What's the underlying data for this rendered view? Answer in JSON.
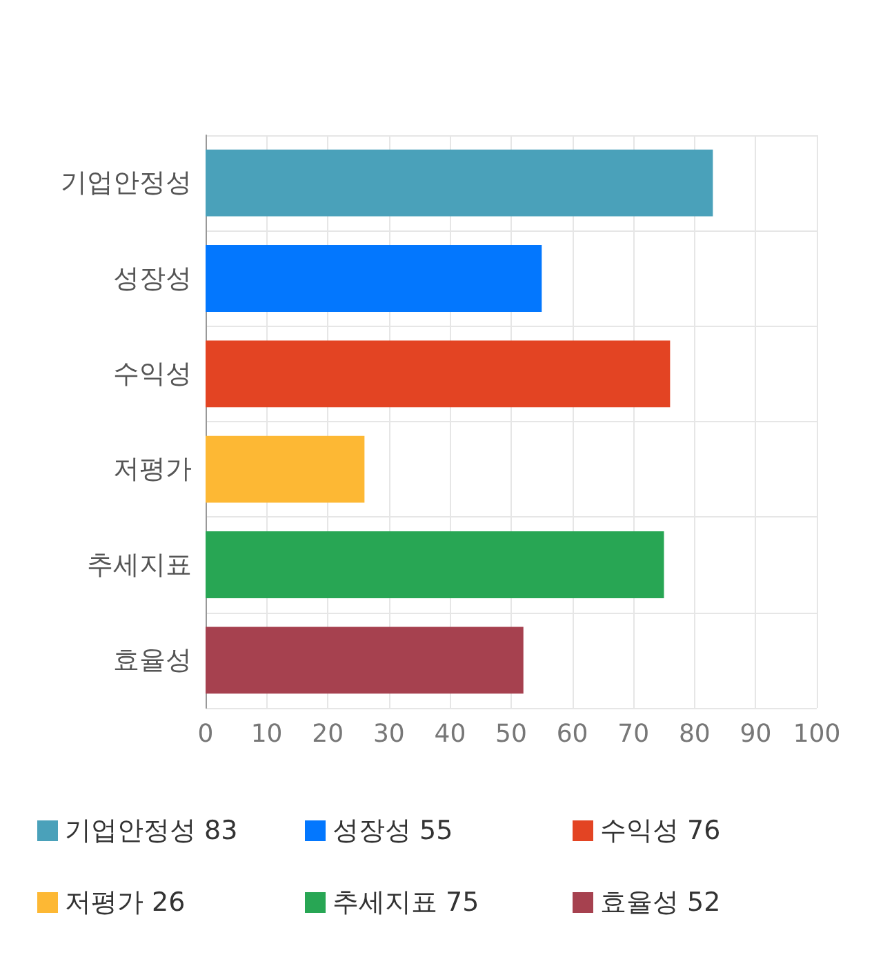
{
  "chart_data": {
    "type": "bar",
    "orientation": "horizontal",
    "stacked": true,
    "categories": [
      "기업안정성",
      "성장성",
      "수익성",
      "저평가",
      "추세지표",
      "효율성"
    ],
    "series": [
      {
        "name": "기업안정성 83",
        "color": "#4aa1ba",
        "values": [
          83,
          null,
          null,
          null,
          null,
          null
        ]
      },
      {
        "name": "성장성 55",
        "color": "#0377fe",
        "values": [
          null,
          55,
          null,
          null,
          null,
          null
        ]
      },
      {
        "name": "수익성 76",
        "color": "#e34423",
        "values": [
          null,
          null,
          76,
          null,
          null,
          null
        ]
      },
      {
        "name": "저평가 26",
        "color": "#fdb834",
        "values": [
          null,
          null,
          null,
          26,
          null,
          null
        ]
      },
      {
        "name": "추세지표 75",
        "color": "#28a654",
        "values": [
          null,
          null,
          null,
          null,
          75,
          null
        ]
      },
      {
        "name": "효율성 52",
        "color": "#a6414f",
        "values": [
          null,
          null,
          null,
          null,
          null,
          52
        ]
      }
    ],
    "xlim": [
      0,
      100
    ],
    "xticks": [
      0,
      10,
      20,
      30,
      40,
      50,
      60,
      70,
      80,
      90,
      100
    ],
    "grid": true,
    "legend": "bottom"
  }
}
